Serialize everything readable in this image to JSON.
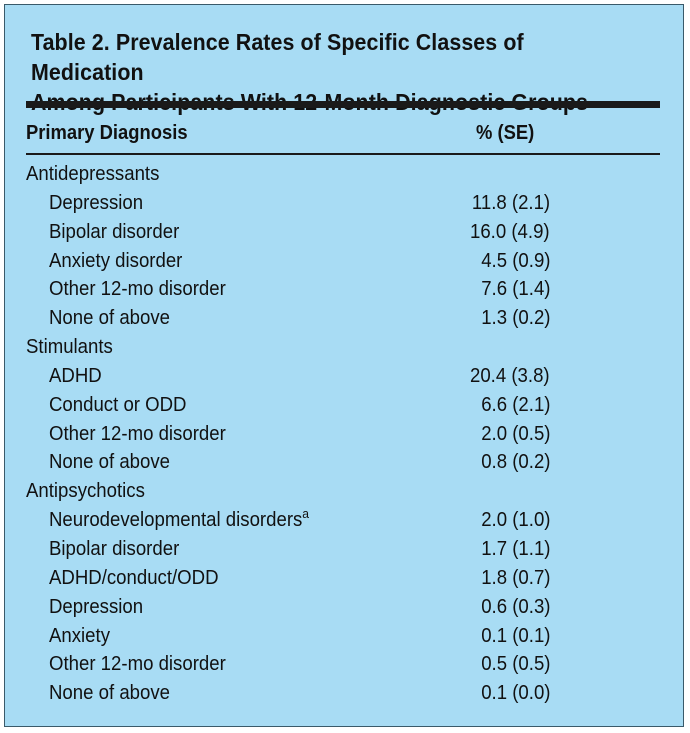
{
  "table": {
    "title_line1": "Table 2. Prevalence Rates of Specific Classes of Medication",
    "title_line2": "Among Participants With 12-Month Diagnostic Groups",
    "col_diagnosis": "Primary Diagnosis",
    "col_percent": "% (SE)",
    "groups": [
      {
        "name": "Antidepressants",
        "rows": [
          {
            "label": "Depression",
            "value": "11.8 (2.1)"
          },
          {
            "label": "Bipolar disorder",
            "value": "16.0 (4.9)"
          },
          {
            "label": "Anxiety disorder",
            "value": "4.5 (0.9)"
          },
          {
            "label": "Other 12-mo disorder",
            "value": "7.6 (1.4)"
          },
          {
            "label": "None of above",
            "value": "1.3 (0.2)"
          }
        ]
      },
      {
        "name": "Stimulants",
        "rows": [
          {
            "label": "ADHD",
            "value": "20.4 (3.8)"
          },
          {
            "label": "Conduct or ODD",
            "value": "6.6 (2.1)"
          },
          {
            "label": "Other 12-mo disorder",
            "value": "2.0 (0.5)"
          },
          {
            "label": "None of above",
            "value": "0.8 (0.2)"
          }
        ]
      },
      {
        "name": "Antipsychotics",
        "rows": [
          {
            "label": "Neurodevelopmental disorders",
            "sup": "a",
            "value": "2.0 (1.0)"
          },
          {
            "label": "Bipolar disorder",
            "value": "1.7 (1.1)"
          },
          {
            "label": "ADHD/conduct/ODD",
            "value": "1.8 (0.7)"
          },
          {
            "label": "Depression",
            "value": "0.6 (0.3)"
          },
          {
            "label": "Anxiety",
            "value": "0.1 (0.1)"
          },
          {
            "label": "Other 12-mo disorder",
            "value": "0.5 (0.5)"
          },
          {
            "label": "None of above",
            "value": "0.1 (0.0)"
          }
        ]
      }
    ]
  }
}
